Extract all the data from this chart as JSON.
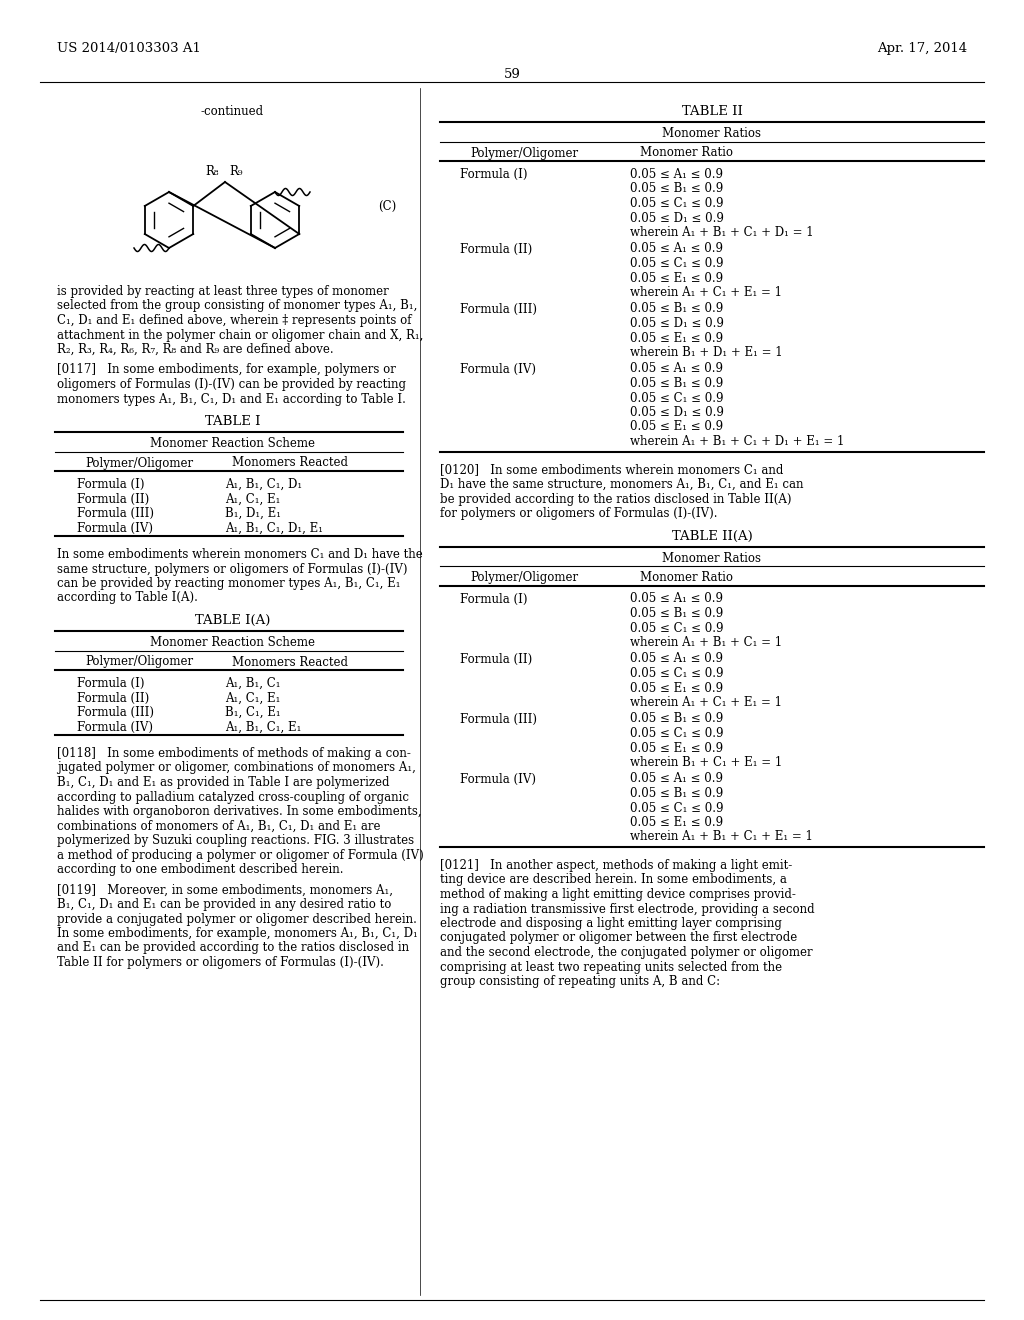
{
  "page_header_left": "US 2014/0103303 A1",
  "page_header_right": "Apr. 17, 2014",
  "page_number": "59",
  "continued_label": "-continued",
  "structure_label_C": "(C)",
  "bg_color": "#ffffff",
  "text_color": "#000000",
  "table1_title": "TABLE I",
  "table1_subtitle": "Monomer Reaction Scheme",
  "table1_col1": "Polymer/Oligomer",
  "table1_col2": "Monomers Reacted",
  "table1_rows": [
    [
      "Formula (I)",
      "A₁, B₁, C₁, D₁"
    ],
    [
      "Formula (II)",
      "A₁, C₁, E₁"
    ],
    [
      "Formula (III)",
      "B₁, D₁, E₁"
    ],
    [
      "Formula (IV)",
      "A₁, B₁, C₁, D₁, E₁"
    ]
  ],
  "table1A_title": "TABLE I(A)",
  "table1A_subtitle": "Monomer Reaction Scheme",
  "table1A_col1": "Polymer/Oligomer",
  "table1A_col2": "Monomers Reacted",
  "table1A_rows": [
    [
      "Formula (I)",
      "A₁, B₁, C₁"
    ],
    [
      "Formula (II)",
      "A₁, C₁, E₁"
    ],
    [
      "Formula (III)",
      "B₁, C₁, E₁"
    ],
    [
      "Formula (IV)",
      "A₁, B₁, C₁, E₁"
    ]
  ],
  "table2_title": "TABLE II",
  "table2_subtitle": "Monomer Ratios",
  "table2_col1": "Polymer/Oligomer",
  "table2_col2": "Monomer Ratio",
  "table2_rows": [
    [
      "Formula (I)",
      [
        "0.05 ≤ A₁ ≤ 0.9",
        "0.05 ≤ B₁ ≤ 0.9",
        "0.05 ≤ C₁ ≤ 0.9",
        "0.05 ≤ D₁ ≤ 0.9",
        "wherein A₁ + B₁ + C₁ + D₁ = 1"
      ]
    ],
    [
      "Formula (II)",
      [
        "0.05 ≤ A₁ ≤ 0.9",
        "0.05 ≤ C₁ ≤ 0.9",
        "0.05 ≤ E₁ ≤ 0.9",
        "wherein A₁ + C₁ + E₁ = 1"
      ]
    ],
    [
      "Formula (III)",
      [
        "0.05 ≤ B₁ ≤ 0.9",
        "0.05 ≤ D₁ ≤ 0.9",
        "0.05 ≤ E₁ ≤ 0.9",
        "wherein B₁ + D₁ + E₁ = 1"
      ]
    ],
    [
      "Formula (IV)",
      [
        "0.05 ≤ A₁ ≤ 0.9",
        "0.05 ≤ B₁ ≤ 0.9",
        "0.05 ≤ C₁ ≤ 0.9",
        "0.05 ≤ D₁ ≤ 0.9",
        "0.05 ≤ E₁ ≤ 0.9",
        "wherein A₁ + B₁ + C₁ + D₁ + E₁ = 1"
      ]
    ]
  ],
  "table2A_title": "TABLE II(A)",
  "table2A_subtitle": "Monomer Ratios",
  "table2A_col1": "Polymer/Oligomer",
  "table2A_col2": "Monomer Ratio",
  "table2A_rows": [
    [
      "Formula (I)",
      [
        "0.05 ≤ A₁ ≤ 0.9",
        "0.05 ≤ B₁ ≤ 0.9",
        "0.05 ≤ C₁ ≤ 0.9",
        "wherein A₁ + B₁ + C₁ = 1"
      ]
    ],
    [
      "Formula (II)",
      [
        "0.05 ≤ A₁ ≤ 0.9",
        "0.05 ≤ C₁ ≤ 0.9",
        "0.05 ≤ E₁ ≤ 0.9",
        "wherein A₁ + C₁ + E₁ = 1"
      ]
    ],
    [
      "Formula (III)",
      [
        "0.05 ≤ B₁ ≤ 0.9",
        "0.05 ≤ C₁ ≤ 0.9",
        "0.05 ≤ E₁ ≤ 0.9",
        "wherein B₁ + C₁ + E₁ = 1"
      ]
    ],
    [
      "Formula (IV)",
      [
        "0.05 ≤ A₁ ≤ 0.9",
        "0.05 ≤ B₁ ≤ 0.9",
        "0.05 ≤ C₁ ≤ 0.9",
        "0.05 ≤ E₁ ≤ 0.9",
        "wherein A₁ + B₁ + C₁ + E₁ = 1"
      ]
    ]
  ],
  "left_col_paragraphs": {
    "continued_text_lines": [
      "is provided by reacting at least three types of monomer",
      "selected from the group consisting of monomer types A₁, B₁,",
      "C₁, D₁ and E₁ defined above, wherein ‡ represents points of",
      "attachment in the polymer chain or oligomer chain and X, R₁,",
      "R₂, R₃, R₄, R₆, R₇, R₈ and R₉ are defined above."
    ],
    "p0117_lines": [
      "[0117]   In some embodiments, for example, polymers or",
      "oligomers of Formulas (I)-(IV) can be provided by reacting",
      "monomers types A₁, B₁, C₁, D₁ and E₁ according to Table I."
    ],
    "between_t1_t1a_lines": [
      "In some embodiments wherein monomers C₁ and D₁ have the",
      "same structure, polymers or oligomers of Formulas (I)-(IV)",
      "can be provided by reacting monomer types A₁, B₁, C₁, E₁",
      "according to Table I(A)."
    ],
    "p0118_lines": [
      "[0118]   In some embodiments of methods of making a con-",
      "jugated polymer or oligomer, combinations of monomers A₁,",
      "B₁, C₁, D₁ and E₁ as provided in Table I are polymerized",
      "according to palladium catalyzed cross-coupling of organic",
      "halides with organoboron derivatives. In some embodiments,",
      "combinations of monomers of A₁, B₁, C₁, D₁ and E₁ are",
      "polymerized by Suzuki coupling reactions. FIG. 3 illustrates",
      "a method of producing a polymer or oligomer of Formula (IV)",
      "according to one embodiment described herein."
    ],
    "p0119_lines": [
      "[0119]   Moreover, in some embodiments, monomers A₁,",
      "B₁, C₁, D₁ and E₁ can be provided in any desired ratio to",
      "provide a conjugated polymer or oligomer described herein.",
      "In some embodiments, for example, monomers A₁, B₁, C₁, D₁",
      "and E₁ can be provided according to the ratios disclosed in",
      "Table II for polymers or oligomers of Formulas (I)-(IV)."
    ]
  },
  "right_col_paragraphs": {
    "p0120_lines": [
      "[0120]   In some embodiments wherein monomers C₁ and",
      "D₁ have the same structure, monomers A₁, B₁, C₁, and E₁ can",
      "be provided according to the ratios disclosed in Table II(A)",
      "for polymers or oligomers of Formulas (I)-(IV)."
    ],
    "p0121_lines": [
      "[0121]   In another aspect, methods of making a light emit-",
      "ting device are described herein. In some embodiments, a",
      "method of making a light emitting device comprises provid-",
      "ing a radiation transmissive first electrode, providing a second",
      "electrode and disposing a light emitting layer comprising",
      "conjugated polymer or oligomer between the first electrode",
      "and the second electrode, the conjugated polymer or oligomer",
      "comprising at least two repeating units selected from the",
      "group consisting of repeating units A, B and C:"
    ]
  }
}
